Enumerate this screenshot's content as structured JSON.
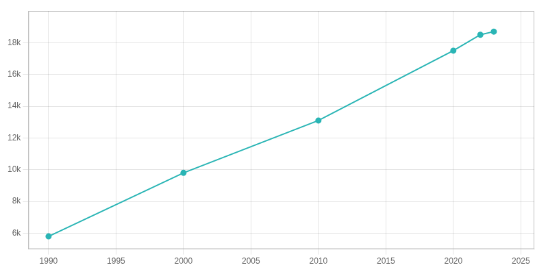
{
  "chart_data": {
    "type": "line",
    "x": [
      1990,
      2000,
      2010,
      2020,
      2022,
      2023
    ],
    "series": [
      {
        "values": [
          5800,
          9800,
          13100,
          17500,
          18500,
          18700
        ],
        "color": "#2ab5b5",
        "marker": "circle",
        "line_style": "solid"
      }
    ],
    "xlim": [
      1988.5,
      2026
    ],
    "xticks": [
      1990,
      1995,
      2000,
      2005,
      2010,
      2015,
      2020,
      2025
    ],
    "ylim": [
      5000,
      20000
    ],
    "yticks": [
      {
        "value": 6000,
        "label": "6k"
      },
      {
        "value": 8000,
        "label": "8k"
      },
      {
        "value": 10000,
        "label": "10k"
      },
      {
        "value": 12000,
        "label": "12k"
      },
      {
        "value": 14000,
        "label": "14k"
      },
      {
        "value": 16000,
        "label": "16k"
      },
      {
        "value": 18000,
        "label": "18k"
      }
    ],
    "grid": true
  }
}
